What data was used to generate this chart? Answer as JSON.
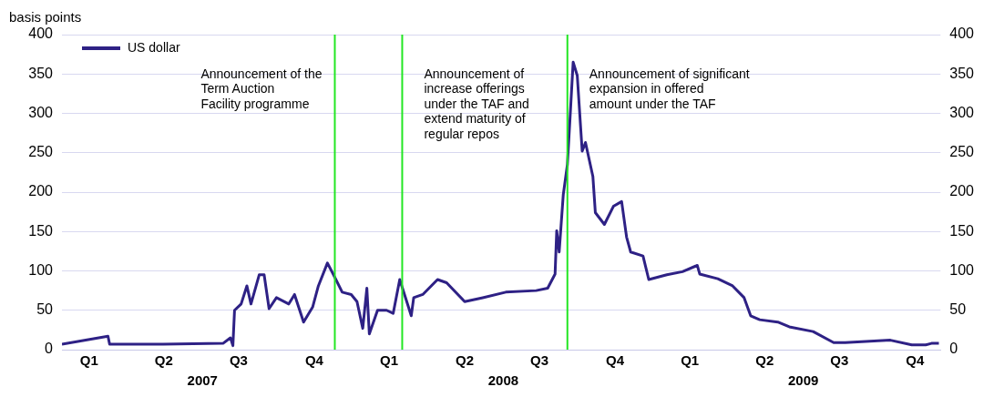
{
  "chart_data": {
    "type": "line",
    "ylabel": "basis points",
    "x": [
      "2007-01-12",
      "2007-03-09",
      "2007-03-11",
      "2007-05-15",
      "2007-07-27",
      "2007-08-05",
      "2007-08-08",
      "2007-08-10",
      "2007-08-18",
      "2007-08-25",
      "2007-08-30",
      "2007-09-09",
      "2007-09-15",
      "2007-09-21",
      "2007-09-30",
      "2007-10-15",
      "2007-10-22",
      "2007-11-02",
      "2007-11-13",
      "2007-11-20",
      "2007-12-01",
      "2007-12-08",
      "2007-12-19",
      "2007-12-30",
      "2008-01-06",
      "2008-01-13",
      "2008-01-18",
      "2008-01-21",
      "2008-01-31",
      "2008-02-11",
      "2008-02-19",
      "2008-02-27",
      "2008-03-12",
      "2008-03-15",
      "2008-03-26",
      "2008-04-13",
      "2008-04-24",
      "2008-05-16",
      "2008-06-07",
      "2008-07-05",
      "2008-08-11",
      "2008-08-25",
      "2008-09-03",
      "2008-09-05",
      "2008-09-08",
      "2008-09-13",
      "2008-09-18",
      "2008-09-21",
      "2008-09-25",
      "2008-09-30",
      "2008-10-06",
      "2008-10-10",
      "2008-10-19",
      "2008-10-22",
      "2008-11-02",
      "2008-11-13",
      "2008-11-23",
      "2008-11-29",
      "2008-12-04",
      "2008-12-19",
      "2008-12-26",
      "2009-01-17",
      "2009-02-05",
      "2009-02-23",
      "2009-02-26",
      "2009-03-20",
      "2009-04-07",
      "2009-04-21",
      "2009-04-29",
      "2009-05-10",
      "2009-06-01",
      "2009-06-15",
      "2009-07-14",
      "2009-08-08",
      "2009-08-22",
      "2009-10-16",
      "2009-11-11",
      "2009-11-28",
      "2009-12-05",
      "2009-12-14"
    ],
    "series": [
      {
        "name": "US dollar",
        "color": "#2e2185",
        "values": [
          7,
          17,
          7,
          7,
          8,
          15,
          5,
          50,
          58,
          81,
          58,
          95,
          95,
          52,
          66,
          58,
          70,
          35,
          54,
          81,
          110,
          96,
          73,
          70,
          61,
          27,
          78,
          20,
          50,
          50,
          46,
          89,
          43,
          66,
          70,
          89,
          85,
          61,
          66,
          73,
          75,
          78,
          96,
          151,
          124,
          197,
          235,
          290,
          365,
          348,
          252,
          263,
          220,
          174,
          159,
          182,
          188,
          143,
          124,
          119,
          89,
          95,
          99,
          107,
          96,
          90,
          81,
          66,
          43,
          38,
          35,
          29,
          23,
          9,
          9,
          12,
          6,
          6,
          8,
          8
        ]
      }
    ],
    "xlim": [
      "2007-01-12",
      "2009-12-16"
    ],
    "xticks": [
      {
        "value": "2007-02-14",
        "label": "Q1"
      },
      {
        "value": "2007-05-16",
        "label": "Q2"
      },
      {
        "value": "2007-08-15",
        "label": "Q3"
      },
      {
        "value": "2007-11-15",
        "label": "Q4"
      },
      {
        "value": "2008-02-14",
        "label": "Q1"
      },
      {
        "value": "2008-05-16",
        "label": "Q2"
      },
      {
        "value": "2008-08-15",
        "label": "Q3"
      },
      {
        "value": "2008-11-15",
        "label": "Q4"
      },
      {
        "value": "2009-02-14",
        "label": "Q1"
      },
      {
        "value": "2009-05-16",
        "label": "Q2"
      },
      {
        "value": "2009-08-15",
        "label": "Q3"
      },
      {
        "value": "2009-11-15",
        "label": "Q4"
      }
    ],
    "x2ticks": [
      {
        "value": "2007-07-02",
        "label": "2007"
      },
      {
        "value": "2008-07-02",
        "label": "2008"
      },
      {
        "value": "2009-07-02",
        "label": "2009"
      }
    ],
    "x2lim": [
      "2007-01-12",
      "2009-12-16"
    ],
    "ylim": [
      0,
      400
    ],
    "yticks": [
      0,
      50,
      100,
      150,
      200,
      250,
      300,
      350,
      400
    ],
    "y2lim": [
      0,
      400
    ],
    "y2ticks": [
      0,
      50,
      100,
      150,
      200,
      250,
      300,
      350,
      400
    ],
    "ref_lines": [
      {
        "axis": "x",
        "value": "2007-12-10",
        "label": "Announcement of the\nTerm Auction\nFacility programme",
        "color": "#22e622"
      },
      {
        "axis": "x",
        "value": "2008-03-01",
        "label": "Announcement of\nincrease offerings\nunder the TAF and\nextend maturity of\nregular repos",
        "color": "#22e622"
      },
      {
        "axis": "x",
        "value": "2008-09-18",
        "label": "Announcement of significant\nexpansion in offered\namount under the TAF",
        "color": "#22e622"
      }
    ],
    "grid": "y",
    "legend": "top left",
    "marker": "none",
    "line_style": "solid"
  }
}
